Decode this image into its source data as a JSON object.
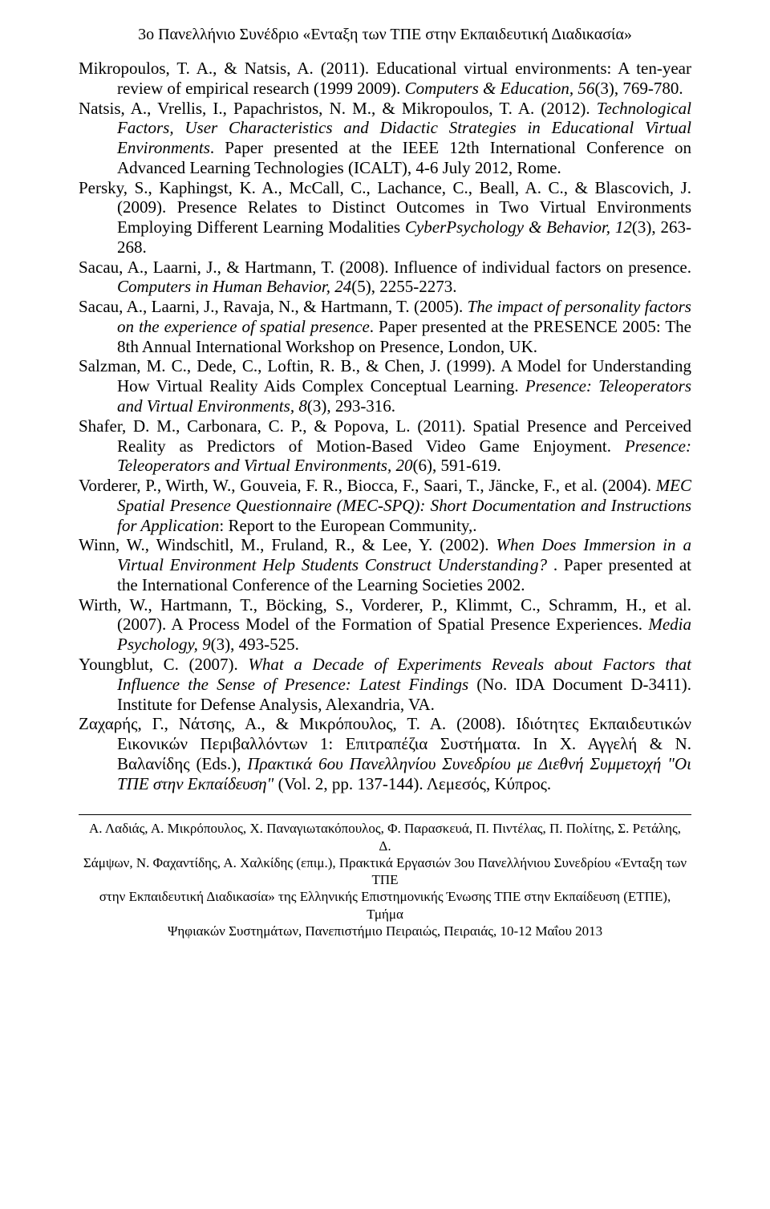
{
  "header": {
    "text": "3ο Πανελλήνιο Συνέδριο «Ενταξη των ΤΠΕ στην Εκπαιδευτική Διαδικασία»"
  },
  "references": [
    {
      "html": "Mikropoulos, T. A., & Natsis, A. (2011). Educational virtual environments: A ten-year review of empirical research (1999 2009). <em>Computers & Education, 56</em>(3), 769-780."
    },
    {
      "html": "Natsis, A., Vrellis, I., Papachristos, N. M., & Mikropoulos, T. A. (2012). <em>Technological Factors, User Characteristics and Didactic Strategies in Educational Virtual Environments</em>. Paper presented at the IEEE 12th International Conference on Advanced Learning Technologies (ICALT), 4-6 July 2012, Rome."
    },
    {
      "html": "Persky, S., Kaphingst, K. A., McCall, C., Lachance, C., Beall, A. C., & Blascovich, J. (2009). Presence Relates to Distinct Outcomes in Two Virtual Environments Employing Different Learning Modalities <em>CyberPsychology & Behavior, 12</em>(3), 263-268."
    },
    {
      "html": "Sacau, A., Laarni, J., & Hartmann, T. (2008). Influence of individual factors on presence. <em>Computers in Human Behavior, 24</em>(5), 2255-2273."
    },
    {
      "html": "Sacau, A., Laarni, J., Ravaja, N., & Hartmann, T. (2005). <em>The impact of personality factors on the experience of spatial presence</em>. Paper presented at the PRESENCE 2005: The 8th Annual International Workshop on Presence, London, UK."
    },
    {
      "html": "Salzman, M. C., Dede, C., Loftin, R. B., & Chen, J. (1999). A Model for Understanding How Virtual Reality Aids Complex Conceptual Learning. <em>Presence: Teleoperators and Virtual Environments, 8</em>(3), 293-316."
    },
    {
      "html": "Shafer, D. M., Carbonara, C. P., & Popova, L. (2011). Spatial Presence and Perceived Reality as Predictors of Motion-Based Video Game Enjoyment. <em>Presence: Teleoperators and Virtual Environments, 20</em>(6), 591-619."
    },
    {
      "html": "Vorderer, P., Wirth, W., Gouveia, F. R., Biocca, F., Saari, T., Jäncke, F., et al. (2004). <em>MEC Spatial Presence Questionnaire (MEC-SPQ): Short Documentation and Instructions for Application</em>: Report to the European Community,."
    },
    {
      "html": "Winn, W., Windschitl, M., Fruland, R., & Lee, Y. (2002). <em>When Does Immersion in a Virtual Environment Help Students Construct Understanding?</em> . Paper presented at the International Conference of the Learning Societies 2002."
    },
    {
      "html": "Wirth, W., Hartmann, T., Böcking, S., Vorderer, P., Klimmt, C., Schramm, H., et al. (2007). A Process Model of the Formation of Spatial Presence Experiences. <em>Media Psychology, 9</em>(3), 493-525."
    },
    {
      "html": "Youngblut, C. (2007). <em>What a Decade of Experiments Reveals about Factors that Influence the Sense of Presence: Latest Findings</em> (No. IDA Document D-3411). Institute for Defense Analysis, Alexandria, VA."
    },
    {
      "html": "Ζαχαρής, Γ., Νάτσης, Α., & Μικρόπουλος, Τ. Α. (2008). Ιδιότητες Εκπαιδευτικών Εικονικών Περιβαλλόντων 1: Επιτραπέζια Συστήματα. In Χ. Αγγελή & Ν. Βαλανίδης (Eds.), <em>Πρακτικά 6ου Πανελληνίου Συνεδρίου με Διεθνή Συμμετοχή \"Οι ΤΠΕ στην Εκπαίδευση\"</em> (Vol. 2, pp. 137-144). Λεμεσός, Κύπρος."
    }
  ],
  "footer": {
    "line1": "Α. Λαδιάς, Α. Μικρόπουλος, Χ. Παναγιωτακόπουλος, Φ. Παρασκευά, Π. Πιντέλας, Π. Πολίτης, Σ. Ρετάλης, Δ.",
    "line2": "Σάμψων, Ν. Φαχαντίδης, Α. Χαλκίδης (επιμ.), Πρακτικά Εργασιών 3ου  Πανελλήνιου Συνεδρίου «Ένταξη των ΤΠΕ",
    "line3": "στην Εκπαιδευτική Διαδικασία» της Ελληνικής Επιστημονικής Ένωσης ΤΠΕ στην Εκπαίδευση (ΕΤΠΕ), Τμήμα",
    "line4": "Ψηφιακών Συστημάτων, Πανεπιστήμιο Πειραιώς, Πειραιάς, 10-12 Μαΐου 2013"
  }
}
